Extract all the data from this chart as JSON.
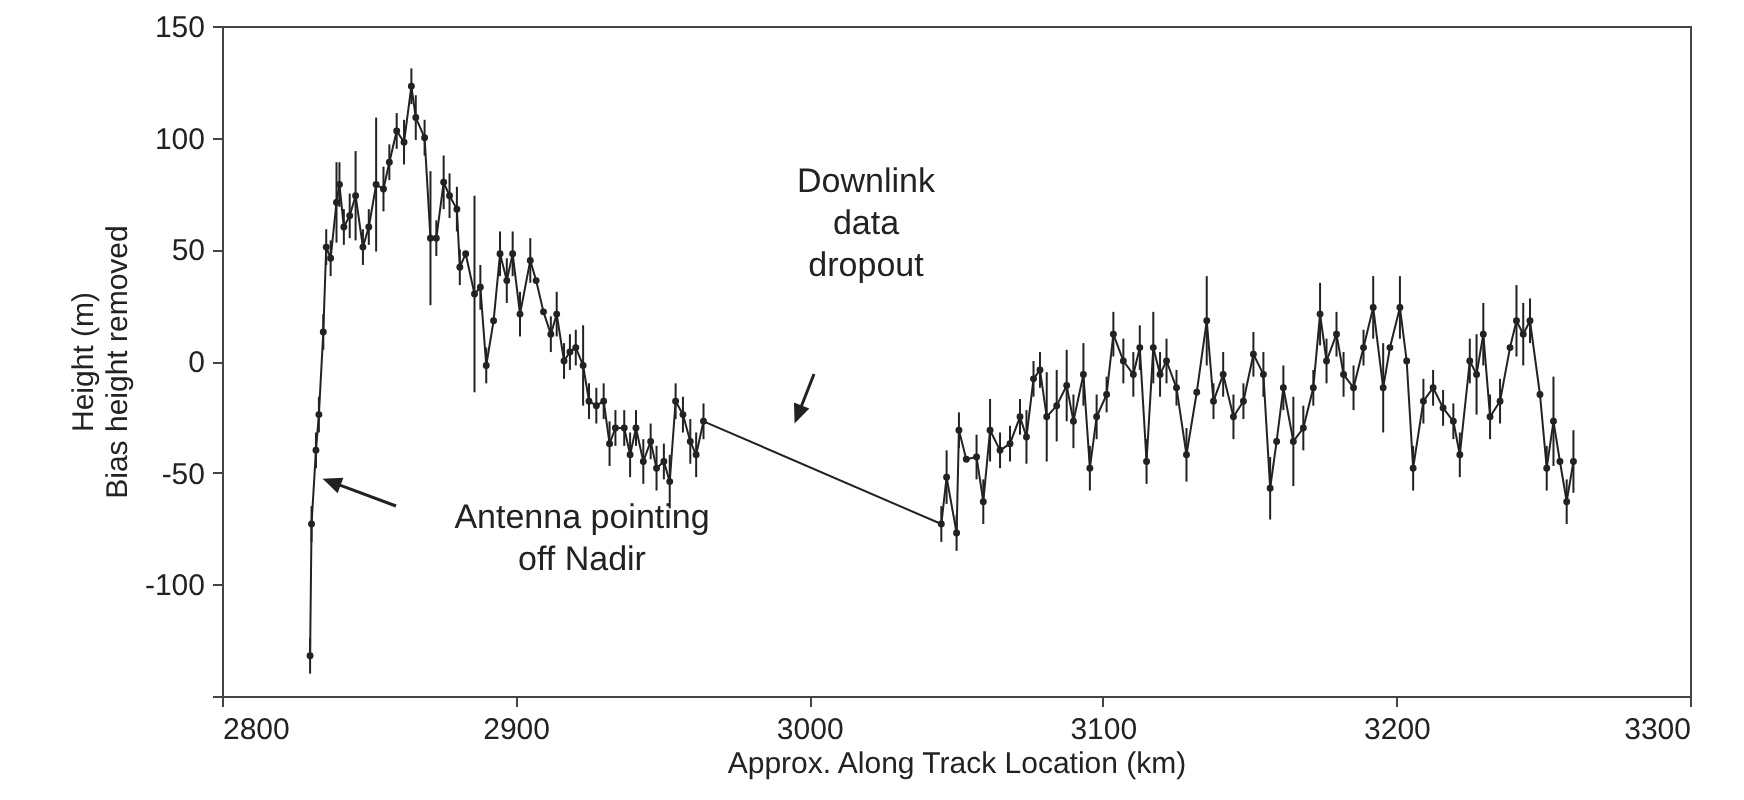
{
  "chart_data": {
    "type": "line",
    "xlabel": "Approx. Along Track Location (km)",
    "ylabel": "Height (m)\nBias height removed",
    "xlim": [
      2800,
      3300
    ],
    "xticks": [
      2800,
      2900,
      3000,
      3100,
      3200,
      3300
    ],
    "ylim": [
      -150,
      150
    ],
    "yticks": [
      {
        "value": -150,
        "label": null
      },
      -100,
      -50,
      0,
      50,
      100,
      150
    ],
    "grid": false,
    "marker": "circle",
    "line_style": "solid",
    "annotations": [
      "Downlink\ndata\ndropout",
      "Antenna pointing\noff Nadir"
    ],
    "series": [
      {
        "color": "#222222",
        "x": [
          2830,
          2830.5,
          2832,
          2833,
          2834.5,
          2835.5,
          2837,
          2839,
          2840,
          2841.5,
          2843.5,
          2845.5,
          2848,
          2850,
          2852.5,
          2855,
          2857,
          2859.5,
          2862,
          2864.5,
          2866,
          2869,
          2871,
          2873,
          2875.5,
          2877.5,
          2880,
          2881,
          2883,
          2886,
          2888,
          2890,
          2892.5,
          2894.7,
          2897,
          2899,
          2901.5,
          2905,
          2907,
          2909.5,
          2912,
          2914,
          2916.5,
          2918.5,
          2920.5,
          2923,
          2925,
          2927.5,
          2930,
          2932,
          2934,
          2937,
          2939,
          2941,
          2943.5,
          2946,
          2948,
          2950.5,
          2952.5,
          2954.5,
          2957,
          2959.5,
          2961.5,
          2964,
          3045,
          3046.8,
          3050.2,
          3051,
          3053.5,
          3057,
          3059.3,
          3061.6,
          3065,
          3068.4,
          3071.8,
          3074,
          3076.4,
          3078.6,
          3080.9,
          3084.3,
          3087.7,
          3090,
          3093.4,
          3095.6,
          3097.9,
          3101.3,
          3103.6,
          3107,
          3110.4,
          3112.6,
          3114.9,
          3117.2,
          3119.5,
          3121.7,
          3125.1,
          3128.5,
          3132,
          3135.4,
          3137.7,
          3141,
          3144.5,
          3147.9,
          3151.3,
          3154.7,
          3157,
          3159.2,
          3161.5,
          3164.9,
          3168.3,
          3171.7,
          3174,
          3176.2,
          3179.6,
          3182,
          3185.4,
          3188.8,
          3192.1,
          3195.5,
          3197.8,
          3201.2,
          3203.5,
          3205.7,
          3209.2,
          3212.5,
          3215.9,
          3219.4,
          3221.6,
          3225,
          3227.3,
          3229.6,
          3231.9,
          3235.3,
          3238.7,
          3240.9,
          3243.2,
          3245.5,
          3248.9,
          3251.2,
          3253.5,
          3255.7,
          3258,
          3260.3
        ],
        "values": [
          -132,
          -73,
          -40,
          -24,
          13,
          51,
          46,
          71,
          79,
          60,
          65,
          74,
          51,
          60,
          79,
          77,
          89,
          103,
          98,
          123,
          109,
          100,
          55,
          55,
          80,
          74,
          68,
          42,
          48,
          30,
          33,
          -2,
          18,
          48,
          36,
          48,
          21,
          45,
          36,
          22,
          12,
          21,
          0,
          4,
          6,
          -2,
          -18,
          -20,
          -18,
          -37,
          -30,
          -30,
          -42,
          -30,
          -45,
          -36,
          -48,
          -45,
          -54,
          -18,
          -24,
          -36,
          -42,
          -27,
          -73,
          -52,
          -77,
          -31,
          -44,
          -43,
          -63,
          -31,
          -40,
          -37,
          -25,
          -34,
          -8,
          -4,
          -25,
          -20,
          -11,
          -27,
          -6,
          -48,
          -25,
          -15,
          12,
          0,
          -6,
          6,
          -45,
          6,
          -6,
          0,
          -12,
          -42,
          -14,
          18,
          -18,
          -6,
          -25,
          -18,
          3,
          -6,
          -57,
          -36,
          -12,
          -36,
          -30,
          -12,
          21,
          0,
          12,
          -6,
          -12,
          6,
          24,
          -12,
          6,
          24,
          0,
          -48,
          -18,
          -12,
          -21,
          -27,
          -42,
          0,
          -6,
          12,
          -25,
          -18,
          6,
          18,
          12,
          18,
          -15,
          -48,
          -27,
          -45,
          -63,
          -45
        ],
        "errors": [
          8,
          8,
          8,
          8,
          8,
          8,
          8,
          18,
          10,
          8,
          10,
          20,
          8,
          8,
          30,
          10,
          8,
          8,
          10,
          8,
          10,
          8,
          30,
          8,
          12,
          10,
          10,
          8,
          null,
          44,
          10,
          8,
          null,
          10,
          10,
          10,
          10,
          10,
          null,
          null,
          8,
          10,
          8,
          8,
          8,
          18,
          8,
          8,
          8,
          10,
          8,
          8,
          10,
          8,
          10,
          8,
          10,
          8,
          12,
          8,
          8,
          10,
          10,
          8,
          8,
          12,
          8,
          8,
          null,
          10,
          10,
          14,
          8,
          8,
          8,
          12,
          8,
          8,
          20,
          16,
          16,
          12,
          14,
          10,
          10,
          8,
          10,
          10,
          10,
          10,
          10,
          16,
          10,
          10,
          8,
          12,
          null,
          20,
          8,
          10,
          10,
          8,
          10,
          10,
          14,
          null,
          10,
          20,
          10,
          8,
          14,
          10,
          10,
          10,
          10,
          8,
          14,
          20,
          null,
          14,
          null,
          10,
          10,
          8,
          8,
          8,
          10,
          10,
          18,
          14,
          10,
          10,
          null,
          16,
          14,
          10,
          null,
          10,
          20,
          null,
          10,
          14
        ]
      }
    ]
  }
}
